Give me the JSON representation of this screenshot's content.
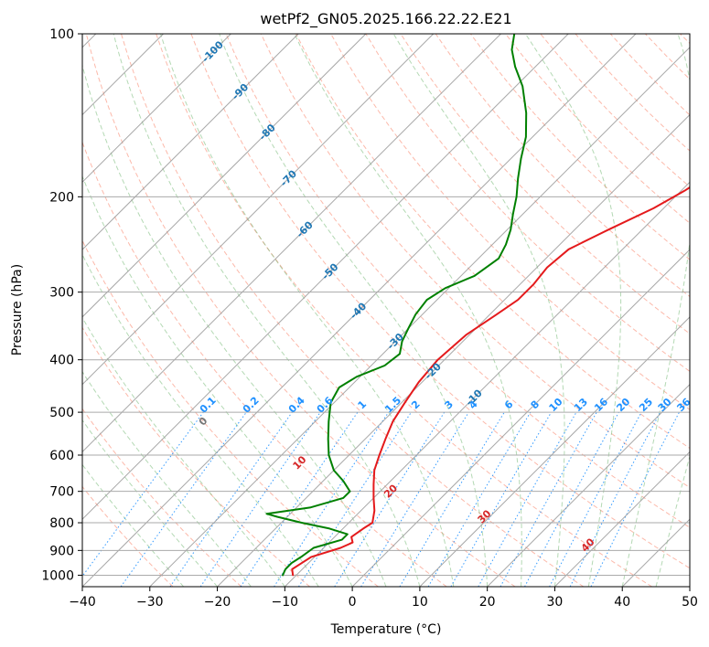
{
  "chart_data": {
    "type": "line",
    "title": "wetPf2_GN05.2025.166.22.22.E21",
    "xlabel": "Temperature (°C)",
    "ylabel": "Pressure (hPa)",
    "xlim": [
      -40,
      50
    ],
    "ylim": [
      1050,
      100
    ],
    "y_scale": "log",
    "x_ticks": [
      -40,
      -30,
      -20,
      -10,
      0,
      10,
      20,
      30,
      40,
      50
    ],
    "x_tick_labels": [
      "−40",
      "−30",
      "−20",
      "−10",
      "0",
      "10",
      "20",
      "30",
      "40",
      "50"
    ],
    "y_ticks": [
      100,
      200,
      300,
      400,
      500,
      600,
      700,
      800,
      900,
      1000
    ],
    "y_tick_labels": [
      "100",
      "200",
      "300",
      "400",
      "500",
      "600",
      "700",
      "800",
      "900",
      "1000"
    ],
    "skew_deg": 45,
    "grid": true,
    "series": [
      {
        "color": "#e41a1c",
        "points": [
          [
            -10.5,
            1000
          ],
          [
            -11.5,
            975
          ],
          [
            -11.0,
            950
          ],
          [
            -10.5,
            925
          ],
          [
            -7.5,
            890
          ],
          [
            -6.5,
            870
          ],
          [
            -7.5,
            850
          ],
          [
            -7.0,
            820
          ],
          [
            -6.5,
            800
          ],
          [
            -8.0,
            760
          ],
          [
            -10.0,
            720
          ],
          [
            -12.0,
            680
          ],
          [
            -14.0,
            640
          ],
          [
            -15.5,
            600
          ],
          [
            -17.0,
            560
          ],
          [
            -18.5,
            520
          ],
          [
            -19.5,
            480
          ],
          [
            -20.5,
            440
          ],
          [
            -21.0,
            400
          ],
          [
            -20.5,
            360
          ],
          [
            -19.0,
            330
          ],
          [
            -18.0,
            310
          ],
          [
            -18.0,
            290
          ],
          [
            -18.5,
            270
          ],
          [
            -18.0,
            250
          ],
          [
            -15.0,
            230
          ],
          [
            -11.5,
            210
          ],
          [
            -9.5,
            195
          ],
          [
            -8.0,
            180
          ],
          [
            -8.5,
            165
          ],
          [
            -10.5,
            150
          ],
          [
            -13.5,
            140
          ],
          [
            -18.0,
            130
          ],
          [
            -21.5,
            120
          ],
          [
            -25.0,
            110
          ],
          [
            -29.0,
            100
          ]
        ]
      },
      {
        "color": "#008000",
        "points": [
          [
            -12.0,
            1000
          ],
          [
            -12.5,
            975
          ],
          [
            -12.5,
            950
          ],
          [
            -12.0,
            925
          ],
          [
            -11.5,
            890
          ],
          [
            -8.5,
            860
          ],
          [
            -8.5,
            840
          ],
          [
            -12.0,
            820
          ],
          [
            -17.0,
            800
          ],
          [
            -21.5,
            780
          ],
          [
            -23.5,
            770
          ],
          [
            -18.0,
            750
          ],
          [
            -14.5,
            720
          ],
          [
            -14.5,
            700
          ],
          [
            -17.0,
            670
          ],
          [
            -20.0,
            640
          ],
          [
            -23.0,
            600
          ],
          [
            -25.5,
            560
          ],
          [
            -28.0,
            520
          ],
          [
            -30.5,
            480
          ],
          [
            -31.5,
            450
          ],
          [
            -30.5,
            430
          ],
          [
            -28.0,
            410
          ],
          [
            -27.5,
            390
          ],
          [
            -29.0,
            370
          ],
          [
            -30.0,
            350
          ],
          [
            -31.0,
            330
          ],
          [
            -31.5,
            310
          ],
          [
            -30.5,
            295
          ],
          [
            -28.0,
            280
          ],
          [
            -27.0,
            260
          ],
          [
            -28.0,
            245
          ],
          [
            -29.5,
            230
          ],
          [
            -31.5,
            215
          ],
          [
            -33.5,
            200
          ],
          [
            -36.0,
            185
          ],
          [
            -38.5,
            170
          ],
          [
            -41.0,
            155
          ],
          [
            -44.5,
            140
          ],
          [
            -49.0,
            125
          ],
          [
            -53.0,
            115
          ],
          [
            -56.0,
            107
          ],
          [
            -58.0,
            100
          ]
        ]
      }
    ],
    "isotherm_labels": {
      "values": [
        -100,
        -90,
        -80,
        -70,
        -60,
        -50,
        -40,
        -30,
        -20,
        -10
      ],
      "labels": [
        "-100",
        "-90",
        "-80",
        "-70",
        "-60",
        "-50",
        "-40",
        "-30",
        "-20",
        "-10"
      ],
      "color": "#1f77b4"
    },
    "dry_adiabat_labels": {
      "values": [
        0,
        10,
        20,
        30,
        40
      ],
      "labels": [
        "0",
        "10",
        "20",
        "30",
        "40"
      ],
      "color_zero": "#777777",
      "color": "#d62728"
    },
    "mixing_ratio_labels": {
      "values": [
        0.1,
        0.2,
        0.4,
        0.6,
        1,
        1.5,
        2,
        3,
        4,
        6,
        8,
        10,
        13,
        16,
        20,
        25,
        30,
        36
      ],
      "labels": [
        "0.1",
        "0.2",
        "0.4",
        "0.6",
        "1",
        "1.5",
        "2",
        "3",
        "4",
        "6",
        "8",
        "10",
        "13",
        "16",
        "20",
        "25",
        "30",
        "36"
      ],
      "color": "#1e90ff"
    },
    "background_line_colors": {
      "isotherm": "#999999",
      "dry_adiabat": "#fa8064",
      "moist_adiabat": "#6ab46a",
      "dry_adiabat_thick": "#d2b48c",
      "mixing_ratio": "#1e90ff"
    }
  }
}
